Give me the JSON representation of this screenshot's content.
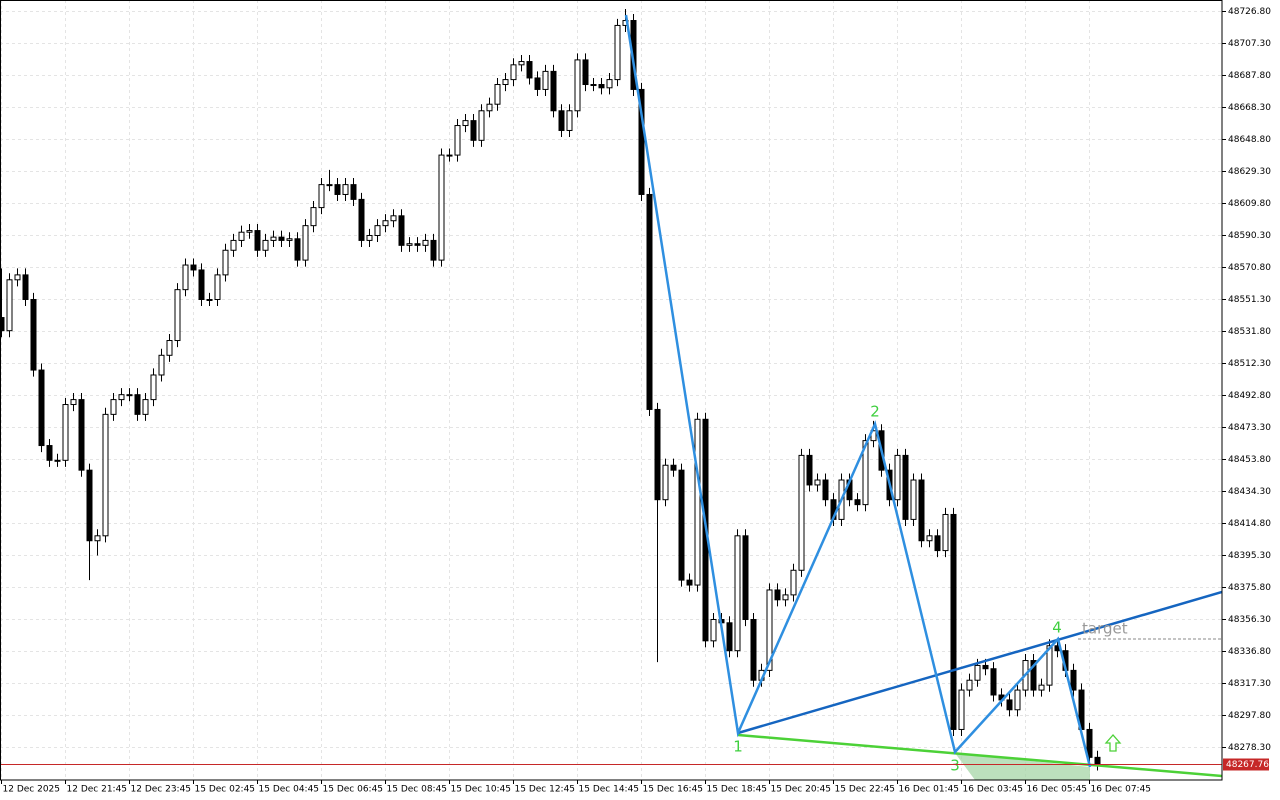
{
  "chart_data": {
    "type": "candlestick",
    "categories": [
      "12 Dec 2025",
      null,
      null,
      null,
      null,
      null,
      null,
      null,
      "12 Dec 21:45",
      null,
      null,
      null,
      null,
      null,
      null,
      null,
      "12 Dec 23:45",
      null,
      null,
      null,
      null,
      null,
      null,
      null,
      "15 Dec 02:45",
      null,
      null,
      null,
      null,
      null,
      null,
      null,
      "15 Dec 04:45",
      null,
      null,
      null,
      null,
      null,
      null,
      null,
      "15 Dec 06:45",
      null,
      null,
      null,
      null,
      null,
      null,
      null,
      "15 Dec 08:45",
      null,
      null,
      null,
      null,
      null,
      null,
      null,
      "15 Dec 10:45",
      null,
      null,
      null,
      null,
      null,
      null,
      null,
      "15 Dec 12:45",
      null,
      null,
      null,
      null,
      null,
      null,
      null,
      "15 Dec 14:45",
      null,
      null,
      null,
      null,
      null,
      null,
      null,
      "15 Dec 16:45",
      null,
      null,
      null,
      null,
      null,
      null,
      null,
      "15 Dec 18:45",
      null,
      null,
      null,
      null,
      null,
      null,
      null,
      "15 Dec 20:45",
      null,
      null,
      null,
      null,
      null,
      null,
      null,
      "15 Dec 22:45",
      null,
      null,
      null,
      null,
      null,
      null,
      null,
      "16 Dec 01:45",
      null,
      null,
      null,
      null,
      null,
      null,
      null,
      "16 Dec 03:45",
      null,
      null,
      null,
      null,
      null,
      null,
      null,
      "16 Dec 05:45",
      null,
      null,
      null,
      null,
      null,
      null,
      null,
      "16 Dec 07:45",
      null
    ],
    "open": [
      48540,
      48532,
      48563,
      48566,
      48551,
      48508,
      48462,
      48453,
      48453,
      48487,
      48490,
      48447,
      48404,
      48407,
      48481,
      48490,
      48493,
      48493,
      48481,
      48490,
      48505,
      48517,
      48526,
      48557,
      48572,
      48569,
      48551,
      48551,
      48566,
      48581,
      48587,
      48592,
      48593,
      48581,
      48587,
      48589,
      48587,
      48588,
      48575,
      48596,
      48607,
      48621,
      48621,
      48615,
      48621,
      48612,
      48587,
      48590,
      48596,
      48599,
      48602,
      48584,
      48585,
      48584,
      48587,
      48575,
      48639,
      48639,
      48657,
      48660,
      48648,
      48666,
      48670,
      48682,
      48685,
      48694,
      48696,
      48686,
      48679,
      48690,
      48666,
      48654,
      48666,
      48697,
      48682,
      48682,
      48680,
      48685,
      48718,
      48721,
      48679,
      48615,
      48484,
      48429,
      48450,
      48447,
      48380,
      48377,
      48478,
      48343,
      48356,
      48354,
      48337,
      48407,
      48356,
      48319,
      48325,
      48374,
      48368,
      48371,
      48386,
      48456,
      48438,
      48441,
      48429,
      48417,
      48441,
      48429,
      48426,
      48465,
      48471,
      48447,
      48429,
      48456,
      48417,
      48441,
      48404,
      48407,
      48398,
      48420,
      48289,
      48313,
      48319,
      48328,
      48326,
      48310,
      48307,
      48301,
      48313,
      48331,
      48313,
      48316,
      48340,
      48337,
      48325,
      48313,
      48289,
      48272
    ],
    "high": [
      48570,
      48567,
      48570,
      48570,
      48555,
      48512,
      48466,
      48457,
      48491,
      48494,
      48494,
      48451,
      48411,
      48485,
      48494,
      48497,
      48497,
      48497,
      48494,
      48509,
      48521,
      48530,
      48561,
      48576,
      48576,
      48573,
      48555,
      48570,
      48585,
      48591,
      48596,
      48597,
      48597,
      48591,
      48593,
      48593,
      48592,
      48592,
      48600,
      48611,
      48625,
      48630,
      48625,
      48625,
      48625,
      48616,
      48594,
      48600,
      48603,
      48606,
      48606,
      48589,
      48589,
      48591,
      48591,
      48643,
      48643,
      48661,
      48664,
      48664,
      48670,
      48674,
      48686,
      48689,
      48698,
      48700,
      48700,
      48690,
      48694,
      48694,
      48670,
      48670,
      48701,
      48701,
      48686,
      48686,
      48689,
      48722,
      48728,
      48725,
      48683,
      48619,
      48488,
      48454,
      48454,
      48451,
      48384,
      48482,
      48482,
      48360,
      48360,
      48358,
      48411,
      48411,
      48360,
      48329,
      48378,
      48378,
      48375,
      48390,
      48460,
      48460,
      48445,
      48445,
      48433,
      48445,
      48445,
      48433,
      48469,
      48477,
      48475,
      48451,
      48460,
      48460,
      48445,
      48445,
      48411,
      48411,
      48424,
      48424,
      48317,
      48323,
      48332,
      48332,
      48330,
      48314,
      48311,
      48317,
      48335,
      48335,
      48320,
      48344,
      48344,
      48341,
      48329,
      48317,
      48293,
      48276
    ],
    "low": [
      48528,
      48528,
      48559,
      48547,
      48504,
      48458,
      48449,
      48449,
      48449,
      48483,
      48443,
      48380,
      48395,
      48403,
      48477,
      48486,
      48489,
      48477,
      48477,
      48486,
      48501,
      48513,
      48522,
      48553,
      48565,
      48547,
      48547,
      48547,
      48562,
      48577,
      48583,
      48588,
      48577,
      48577,
      48583,
      48583,
      48583,
      48571,
      48571,
      48592,
      48603,
      48617,
      48611,
      48611,
      48608,
      48583,
      48583,
      48586,
      48592,
      48595,
      48580,
      48580,
      48580,
      48580,
      48571,
      48571,
      48635,
      48635,
      48653,
      48644,
      48644,
      48662,
      48666,
      48678,
      48681,
      48690,
      48682,
      48675,
      48675,
      48662,
      48650,
      48650,
      48662,
      48678,
      48678,
      48676,
      48676,
      48681,
      48714,
      48675,
      48611,
      48480,
      48330,
      48425,
      48443,
      48376,
      48373,
      48373,
      48339,
      48339,
      48350,
      48333,
      48333,
      48352,
      48315,
      48315,
      48321,
      48364,
      48364,
      48367,
      48382,
      48434,
      48434,
      48425,
      48413,
      48413,
      48425,
      48422,
      48422,
      48461,
      48443,
      48425,
      48425,
      48413,
      48413,
      48400,
      48400,
      48394,
      48394,
      48285,
      48285,
      48309,
      48315,
      48322,
      48306,
      48303,
      48297,
      48297,
      48309,
      48309,
      48309,
      48312,
      48333,
      48321,
      48309,
      48285,
      48268,
      48264
    ],
    "close": [
      48532,
      48563,
      48566,
      48551,
      48508,
      48462,
      48453,
      48453,
      48487,
      48490,
      48447,
      48404,
      48407,
      48481,
      48490,
      48493,
      48493,
      48481,
      48490,
      48505,
      48517,
      48526,
      48557,
      48572,
      48569,
      48551,
      48551,
      48566,
      48581,
      48587,
      48592,
      48593,
      48581,
      48587,
      48589,
      48587,
      48588,
      48575,
      48596,
      48607,
      48621,
      48621,
      48615,
      48621,
      48612,
      48587,
      48590,
      48596,
      48599,
      48602,
      48584,
      48585,
      48584,
      48587,
      48575,
      48639,
      48639,
      48657,
      48660,
      48648,
      48666,
      48670,
      48682,
      48685,
      48694,
      48696,
      48686,
      48679,
      48690,
      48666,
      48654,
      48666,
      48697,
      48682,
      48682,
      48680,
      48685,
      48718,
      48721,
      48679,
      48615,
      48484,
      48429,
      48450,
      48447,
      48380,
      48377,
      48478,
      48343,
      48356,
      48354,
      48337,
      48407,
      48356,
      48319,
      48325,
      48374,
      48368,
      48371,
      48386,
      48456,
      48438,
      48441,
      48429,
      48417,
      48441,
      48429,
      48426,
      48465,
      48471,
      48447,
      48429,
      48456,
      48417,
      48441,
      48404,
      48407,
      48398,
      48420,
      48289,
      48313,
      48319,
      48328,
      48326,
      48310,
      48307,
      48301,
      48313,
      48331,
      48313,
      48316,
      48340,
      48337,
      48325,
      48313,
      48289,
      48272,
      48268
    ],
    "up_color": "#ffffff",
    "down_color": "#000000",
    "ylim": [
      48258.2,
      48733.5
    ],
    "yticks": [
      {
        "value": 48726.8,
        "label": "48726.80"
      },
      {
        "value": 48707.3,
        "label": "48707.30"
      },
      {
        "value": 48687.8,
        "label": "48687.80"
      },
      {
        "value": 48668.3,
        "label": "48668.30"
      },
      {
        "value": 48648.8,
        "label": "48648.80"
      },
      {
        "value": 48629.3,
        "label": "48629.30"
      },
      {
        "value": 48609.8,
        "label": "48609.80"
      },
      {
        "value": 48590.3,
        "label": "48590.30"
      },
      {
        "value": 48570.8,
        "label": "48570.80"
      },
      {
        "value": 48551.3,
        "label": "48551.30"
      },
      {
        "value": 48531.8,
        "label": "48531.80"
      },
      {
        "value": 48512.3,
        "label": "48512.30"
      },
      {
        "value": 48492.8,
        "label": "48492.80"
      },
      {
        "value": 48473.3,
        "label": "48473.30"
      },
      {
        "value": 48453.8,
        "label": "48453.80"
      },
      {
        "value": 48434.3,
        "label": "48434.30"
      },
      {
        "value": 48414.8,
        "label": "48414.80"
      },
      {
        "value": 48395.3,
        "label": "48395.30"
      },
      {
        "value": 48375.8,
        "label": "48375.80"
      },
      {
        "value": 48356.3,
        "label": "48356.30"
      },
      {
        "value": 48336.8,
        "label": "48336.80"
      },
      {
        "value": 48317.3,
        "label": "48317.30"
      },
      {
        "value": 48297.8,
        "label": "48297.80"
      },
      {
        "value": 48278.3,
        "label": "48278.30"
      }
    ],
    "grid": true,
    "current_price": {
      "value": 48267.76,
      "label": "48267.76"
    },
    "annotations": {
      "points": [
        "1",
        "2",
        "3",
        "4"
      ],
      "target": "target"
    }
  }
}
